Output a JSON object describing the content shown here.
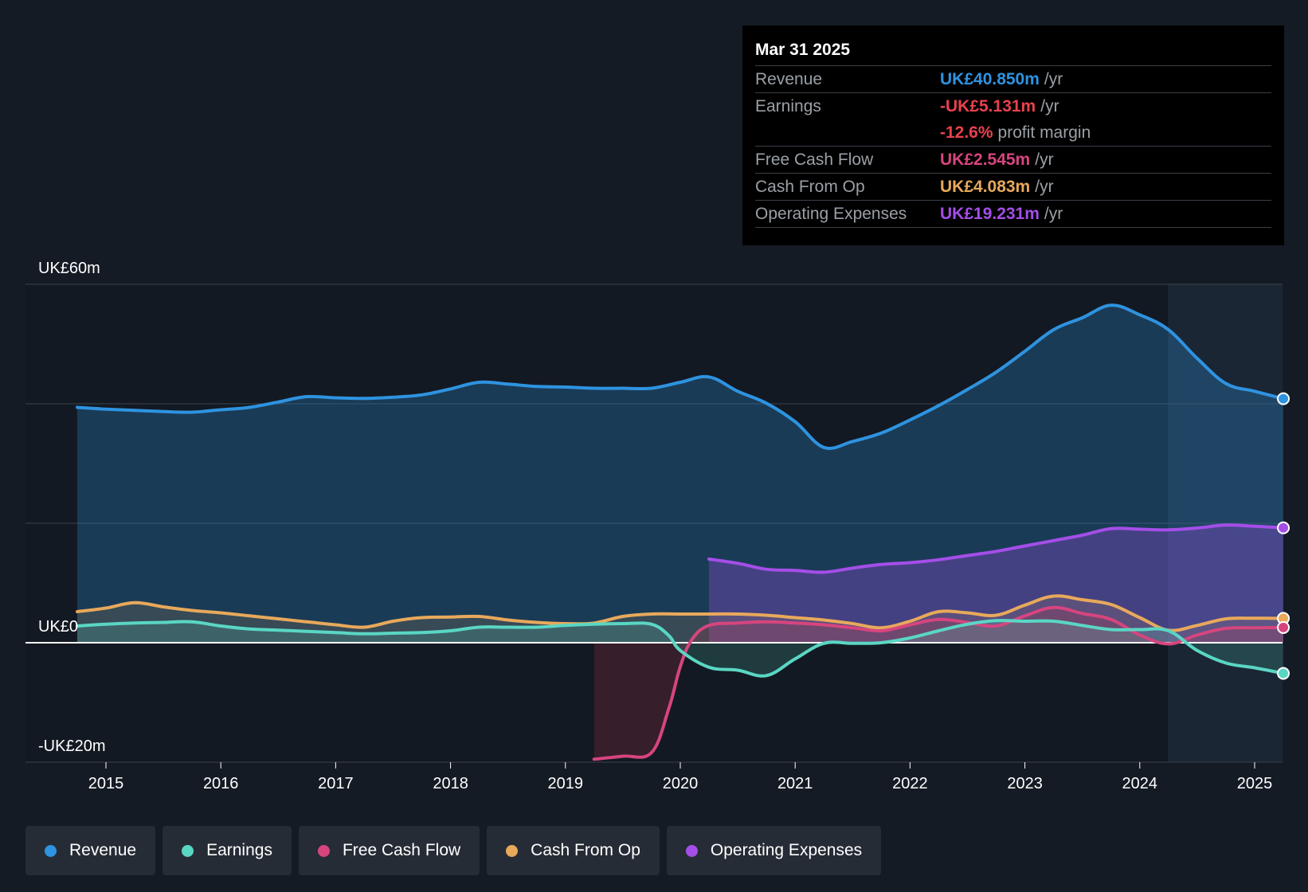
{
  "colors": {
    "revenue": "#2e93e0",
    "earnings": "#5ad6c4",
    "fcf": "#d6457e",
    "cfo": "#e8a95b",
    "opex": "#a44ee8",
    "negative": "#e8414e"
  },
  "tooltip": {
    "date": "Mar 31 2025",
    "rows": [
      {
        "label": "Revenue",
        "value": "UK£40.850m",
        "unit": "/yr"
      },
      {
        "label": "Earnings",
        "value": "-UK£5.131m",
        "unit": "/yr"
      },
      {
        "label": "",
        "value": "-12.6%",
        "unit": "profit margin"
      },
      {
        "label": "Free Cash Flow",
        "value": "UK£2.545m",
        "unit": "/yr"
      },
      {
        "label": "Cash From Op",
        "value": "UK£4.083m",
        "unit": "/yr"
      },
      {
        "label": "Operating Expenses",
        "value": "UK£19.231m",
        "unit": "/yr"
      }
    ]
  },
  "legend": [
    {
      "label": "Revenue",
      "color": "#2e93e0"
    },
    {
      "label": "Earnings",
      "color": "#5ad6c4"
    },
    {
      "label": "Free Cash Flow",
      "color": "#d6457e"
    },
    {
      "label": "Cash From Op",
      "color": "#e8a95b"
    },
    {
      "label": "Operating Expenses",
      "color": "#a44ee8"
    }
  ],
  "chart_data": {
    "type": "area",
    "title": "",
    "xlabel": "",
    "ylabel": "",
    "ylim": [
      -20,
      60
    ],
    "xlim": [
      2014.3,
      2025.25
    ],
    "y_tick_labels": [
      {
        "value": 60,
        "label": "UK£60m"
      },
      {
        "value": 0,
        "label": "UK£0"
      },
      {
        "value": -20,
        "label": "-UK£20m"
      }
    ],
    "gridlines": [
      60,
      40,
      20,
      0,
      -20
    ],
    "x_ticks": [
      {
        "value": 2015,
        "label": "2015"
      },
      {
        "value": 2016,
        "label": "2016"
      },
      {
        "value": 2017,
        "label": "2017"
      },
      {
        "value": 2018,
        "label": "2018"
      },
      {
        "value": 2019,
        "label": "2019"
      },
      {
        "value": 2020,
        "label": "2020"
      },
      {
        "value": 2021,
        "label": "2021"
      },
      {
        "value": 2022,
        "label": "2022"
      },
      {
        "value": 2023,
        "label": "2023"
      },
      {
        "value": 2024,
        "label": "2024"
      },
      {
        "value": 2025,
        "label": "2025"
      }
    ],
    "highlight_start": 2024.25,
    "series": [
      {
        "name": "Revenue",
        "key": "revenue",
        "fill": true,
        "x": [
          2014.75,
          2015.0,
          2015.25,
          2015.5,
          2015.75,
          2016.0,
          2016.25,
          2016.5,
          2016.75,
          2017.0,
          2017.25,
          2017.5,
          2017.75,
          2018.0,
          2018.25,
          2018.5,
          2018.75,
          2019.0,
          2019.25,
          2019.5,
          2019.75,
          2020.0,
          2020.25,
          2020.5,
          2020.75,
          2021.0,
          2021.25,
          2021.5,
          2021.75,
          2022.0,
          2022.25,
          2022.5,
          2022.75,
          2023.0,
          2023.25,
          2023.5,
          2023.75,
          2024.0,
          2024.25,
          2024.5,
          2024.75,
          2025.0,
          2025.25
        ],
        "values": [
          39.4,
          39.1,
          38.9,
          38.7,
          38.6,
          39.0,
          39.4,
          40.3,
          41.2,
          41.0,
          40.9,
          41.1,
          41.5,
          42.5,
          43.6,
          43.3,
          42.9,
          42.8,
          42.6,
          42.6,
          42.6,
          43.6,
          44.5,
          42.1,
          40.1,
          37.0,
          32.7,
          33.7,
          35.1,
          37.3,
          39.7,
          42.4,
          45.3,
          48.8,
          52.4,
          54.4,
          56.5,
          54.9,
          52.4,
          47.6,
          43.4,
          42.1,
          40.85
        ]
      },
      {
        "name": "Operating Expenses",
        "key": "opex",
        "fill": true,
        "x": [
          2020.25,
          2020.5,
          2020.75,
          2021.0,
          2021.25,
          2021.5,
          2021.75,
          2022.0,
          2022.25,
          2022.5,
          2022.75,
          2023.0,
          2023.25,
          2023.5,
          2023.75,
          2024.0,
          2024.25,
          2024.5,
          2024.75,
          2025.0,
          2025.25
        ],
        "values": [
          14.0,
          13.3,
          12.3,
          12.1,
          11.8,
          12.5,
          13.1,
          13.4,
          13.9,
          14.6,
          15.3,
          16.2,
          17.1,
          18.0,
          19.1,
          19.0,
          18.9,
          19.2,
          19.7,
          19.5,
          19.23
        ]
      },
      {
        "name": "Cash From Op",
        "key": "cfo",
        "fill": true,
        "x": [
          2014.75,
          2015.0,
          2015.25,
          2015.5,
          2015.75,
          2016.0,
          2016.25,
          2016.5,
          2016.75,
          2017.0,
          2017.25,
          2017.5,
          2017.75,
          2018.0,
          2018.25,
          2018.5,
          2018.75,
          2019.0,
          2019.25,
          2019.5,
          2019.75,
          2020.0,
          2020.25,
          2020.5,
          2020.75,
          2021.0,
          2021.25,
          2021.5,
          2021.75,
          2022.0,
          2022.25,
          2022.5,
          2022.75,
          2023.0,
          2023.25,
          2023.5,
          2023.75,
          2024.0,
          2024.25,
          2024.5,
          2024.75,
          2025.0,
          2025.25
        ],
        "values": [
          5.2,
          5.8,
          6.7,
          6.0,
          5.4,
          5.0,
          4.5,
          4.0,
          3.5,
          3.0,
          2.6,
          3.6,
          4.2,
          4.3,
          4.4,
          3.8,
          3.4,
          3.2,
          3.3,
          4.4,
          4.8,
          4.8,
          4.8,
          4.8,
          4.6,
          4.2,
          3.8,
          3.2,
          2.5,
          3.6,
          5.2,
          5.0,
          4.6,
          6.3,
          7.8,
          7.2,
          6.4,
          4.2,
          2.1,
          2.9,
          4.0,
          4.1,
          4.08
        ]
      },
      {
        "name": "Free Cash Flow",
        "key": "fcf",
        "fill": true,
        "x": [
          2019.25,
          2019.5,
          2019.75,
          2019.9,
          2020.0,
          2020.1,
          2020.25,
          2020.5,
          2020.75,
          2021.0,
          2021.25,
          2021.5,
          2021.75,
          2022.0,
          2022.25,
          2022.5,
          2022.75,
          2023.0,
          2023.25,
          2023.5,
          2023.75,
          2024.0,
          2024.25,
          2024.5,
          2024.75,
          2025.0,
          2025.25
        ],
        "values": [
          -19.5,
          -19.0,
          -18.4,
          -11.0,
          -4.0,
          0.5,
          2.9,
          3.3,
          3.5,
          3.3,
          3.0,
          2.5,
          2.0,
          3.0,
          3.9,
          3.4,
          2.8,
          4.5,
          5.9,
          4.9,
          3.9,
          1.3,
          -0.2,
          1.3,
          2.4,
          2.5,
          2.545
        ]
      },
      {
        "name": "Earnings",
        "key": "earnings",
        "fill": true,
        "x": [
          2014.75,
          2015.0,
          2015.25,
          2015.5,
          2015.75,
          2016.0,
          2016.25,
          2016.5,
          2016.75,
          2017.0,
          2017.25,
          2017.5,
          2017.75,
          2018.0,
          2018.25,
          2018.5,
          2018.75,
          2019.0,
          2019.25,
          2019.5,
          2019.75,
          2019.9,
          2020.0,
          2020.25,
          2020.5,
          2020.75,
          2021.0,
          2021.25,
          2021.5,
          2021.75,
          2022.0,
          2022.25,
          2022.5,
          2022.75,
          2023.0,
          2023.25,
          2023.5,
          2023.75,
          2024.0,
          2024.25,
          2024.5,
          2024.75,
          2025.0,
          2025.25
        ],
        "values": [
          2.8,
          3.1,
          3.3,
          3.4,
          3.5,
          2.8,
          2.3,
          2.1,
          1.9,
          1.7,
          1.5,
          1.6,
          1.7,
          2.0,
          2.6,
          2.6,
          2.6,
          2.9,
          3.1,
          3.2,
          3.1,
          1.2,
          -1.3,
          -4.1,
          -4.6,
          -5.5,
          -2.7,
          -0.1,
          -0.1,
          0.0,
          0.8,
          2.0,
          3.1,
          3.7,
          3.6,
          3.6,
          2.9,
          2.2,
          2.2,
          2.0,
          -1.3,
          -3.4,
          -4.2,
          -5.131
        ]
      }
    ]
  }
}
